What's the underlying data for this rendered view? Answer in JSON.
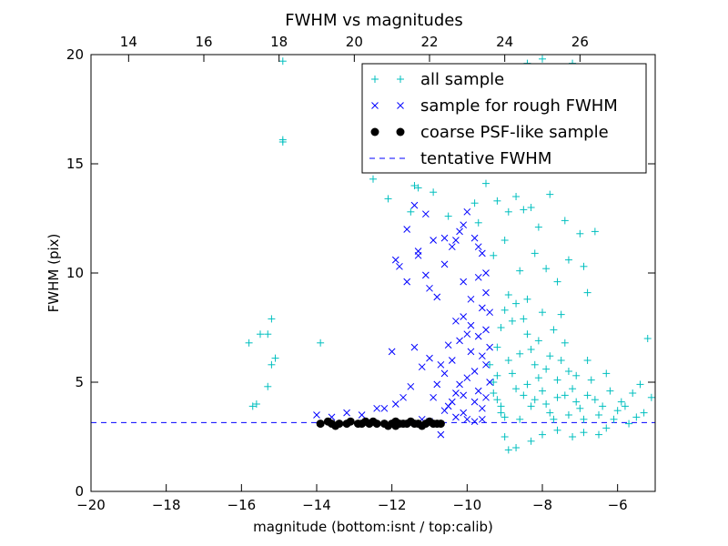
{
  "chart_data": {
    "type": "scatter",
    "title": "FWHM vs magnitudes",
    "xlabel": "magnitude (bottom:isnt / top:calib)",
    "ylabel": "FWHM (pix)",
    "xlim": [
      -20,
      -5
    ],
    "ylim": [
      0,
      20
    ],
    "x_ticks": [
      "−20",
      "−18",
      "−16",
      "−14",
      "−12",
      "−10",
      "−8",
      "−6"
    ],
    "x_tick_values": [
      -20,
      -18,
      -16,
      -14,
      -12,
      -10,
      -8,
      -6
    ],
    "y_ticks": [
      "0",
      "5",
      "10",
      "15",
      "20"
    ],
    "y_tick_values": [
      0,
      5,
      10,
      15,
      20
    ],
    "top_axis": {
      "label_note": "top:calib",
      "ticks": [
        "14",
        "16",
        "18",
        "20",
        "22",
        "24",
        "26"
      ],
      "tick_values": [
        14,
        16,
        18,
        20,
        22,
        24,
        26
      ],
      "xlim": [
        13.0,
        28.0
      ]
    },
    "grid": false,
    "legend_position": "top-right",
    "series": [
      {
        "name": "all sample",
        "marker": "+",
        "color": "#00bfbf",
        "points": [
          [
            -14.9,
            19.7
          ],
          [
            -14.9,
            16.1
          ],
          [
            -14.9,
            16.0
          ],
          [
            -15.2,
            7.9
          ],
          [
            -15.3,
            7.2
          ],
          [
            -15.8,
            6.8
          ],
          [
            -15.5,
            7.2
          ],
          [
            -15.1,
            6.1
          ],
          [
            -15.2,
            5.8
          ],
          [
            -15.3,
            4.8
          ],
          [
            -15.6,
            4.0
          ],
          [
            -15.7,
            3.9
          ],
          [
            -13.9,
            6.8
          ],
          [
            -12.5,
            14.3
          ],
          [
            -12.1,
            13.4
          ],
          [
            -11.5,
            12.8
          ],
          [
            -11.4,
            14.0
          ],
          [
            -11.3,
            13.9
          ],
          [
            -10.9,
            13.7
          ],
          [
            -10.5,
            12.6
          ],
          [
            -9.8,
            13.2
          ],
          [
            -9.7,
            12.3
          ],
          [
            -9.5,
            14.1
          ],
          [
            -9.2,
            13.3
          ],
          [
            -8.9,
            12.8
          ],
          [
            -8.7,
            13.5
          ],
          [
            -8.5,
            12.9
          ],
          [
            -8.3,
            13.0
          ],
          [
            -8.1,
            12.1
          ],
          [
            -7.8,
            13.6
          ],
          [
            -7.4,
            12.4
          ],
          [
            -7.0,
            11.8
          ],
          [
            -6.6,
            11.9
          ],
          [
            -6.9,
            10.3
          ],
          [
            -7.3,
            10.6
          ],
          [
            -8.0,
            19.8
          ],
          [
            -8.4,
            19.6
          ],
          [
            -7.2,
            19.6
          ],
          [
            -8.6,
            10.1
          ],
          [
            -9.0,
            11.5
          ],
          [
            -9.3,
            10.8
          ],
          [
            -8.2,
            10.9
          ],
          [
            -7.9,
            10.2
          ],
          [
            -7.6,
            9.6
          ],
          [
            -6.8,
            9.1
          ],
          [
            -5.2,
            7.0
          ],
          [
            -5.1,
            4.3
          ],
          [
            -5.4,
            4.9
          ],
          [
            -5.6,
            4.5
          ],
          [
            -5.8,
            3.9
          ],
          [
            -5.9,
            4.1
          ],
          [
            -5.3,
            3.6
          ],
          [
            -5.5,
            3.4
          ],
          [
            -5.7,
            3.1
          ],
          [
            -6.1,
            3.3
          ],
          [
            -6.3,
            2.9
          ],
          [
            -6.5,
            2.6
          ],
          [
            -6.9,
            2.7
          ],
          [
            -7.2,
            2.5
          ],
          [
            -7.6,
            2.8
          ],
          [
            -8.0,
            2.6
          ],
          [
            -8.3,
            2.3
          ],
          [
            -8.7,
            2.0
          ],
          [
            -9.0,
            2.5
          ],
          [
            -8.9,
            1.9
          ],
          [
            -9.1,
            3.6
          ],
          [
            -9.2,
            4.2
          ],
          [
            -9.3,
            5.0
          ],
          [
            -9.4,
            5.8
          ],
          [
            -9.2,
            6.6
          ],
          [
            -9.1,
            7.5
          ],
          [
            -9.0,
            8.3
          ],
          [
            -8.9,
            9.0
          ],
          [
            -8.7,
            8.6
          ],
          [
            -8.5,
            7.9
          ],
          [
            -8.4,
            7.2
          ],
          [
            -8.3,
            6.5
          ],
          [
            -8.2,
            5.8
          ],
          [
            -8.1,
            5.2
          ],
          [
            -8.0,
            4.6
          ],
          [
            -7.9,
            4.0
          ],
          [
            -7.8,
            3.6
          ],
          [
            -7.7,
            3.3
          ],
          [
            -7.6,
            5.1
          ],
          [
            -7.5,
            6.0
          ],
          [
            -7.4,
            6.8
          ],
          [
            -7.3,
            5.5
          ],
          [
            -7.2,
            4.7
          ],
          [
            -7.1,
            4.1
          ],
          [
            -7.0,
            3.8
          ],
          [
            -6.8,
            4.4
          ],
          [
            -6.7,
            5.1
          ],
          [
            -6.6,
            4.2
          ],
          [
            -6.4,
            3.9
          ],
          [
            -6.2,
            4.6
          ],
          [
            -6.0,
            3.7
          ],
          [
            -8.6,
            6.3
          ],
          [
            -8.8,
            5.4
          ],
          [
            -8.5,
            4.4
          ],
          [
            -8.3,
            3.9
          ],
          [
            -8.6,
            3.3
          ],
          [
            -9.0,
            3.4
          ],
          [
            -8.8,
            7.8
          ],
          [
            -8.4,
            8.8
          ],
          [
            -8.0,
            8.2
          ],
          [
            -7.7,
            7.4
          ],
          [
            -7.5,
            8.1
          ],
          [
            -7.8,
            6.2
          ],
          [
            -8.1,
            6.9
          ],
          [
            -8.9,
            6.0
          ],
          [
            -9.2,
            5.3
          ],
          [
            -9.3,
            4.5
          ],
          [
            -9.1,
            3.9
          ],
          [
            -7.9,
            5.6
          ],
          [
            -7.6,
            4.3
          ],
          [
            -7.3,
            3.5
          ],
          [
            -6.9,
            3.3
          ],
          [
            -6.5,
            3.5
          ],
          [
            -8.2,
            4.2
          ],
          [
            -8.4,
            4.9
          ],
          [
            -8.7,
            4.7
          ],
          [
            -7.4,
            4.4
          ],
          [
            -7.1,
            5.3
          ],
          [
            -6.8,
            6.0
          ],
          [
            -6.3,
            5.4
          ]
        ]
      },
      {
        "name": "sample for rough FWHM",
        "marker": "x",
        "color": "#0000ff",
        "points": [
          [
            -14.0,
            3.5
          ],
          [
            -13.6,
            3.4
          ],
          [
            -13.2,
            3.6
          ],
          [
            -12.8,
            3.5
          ],
          [
            -12.4,
            3.8
          ],
          [
            -12.2,
            3.8
          ],
          [
            -11.9,
            4.0
          ],
          [
            -11.7,
            4.3
          ],
          [
            -11.5,
            4.8
          ],
          [
            -11.2,
            3.3
          ],
          [
            -11.0,
            3.2
          ],
          [
            -10.7,
            2.6
          ],
          [
            -10.5,
            3.9
          ],
          [
            -10.3,
            4.5
          ],
          [
            -10.1,
            3.6
          ],
          [
            -10.0,
            3.3
          ],
          [
            -9.8,
            3.2
          ],
          [
            -9.6,
            3.3
          ],
          [
            -12.0,
            6.4
          ],
          [
            -11.4,
            6.6
          ],
          [
            -11.9,
            10.6
          ],
          [
            -11.8,
            10.3
          ],
          [
            -11.6,
            9.6
          ],
          [
            -11.3,
            11.0
          ],
          [
            -11.3,
            10.8
          ],
          [
            -11.1,
            9.9
          ],
          [
            -11.0,
            9.3
          ],
          [
            -10.8,
            8.9
          ],
          [
            -10.6,
            10.4
          ],
          [
            -10.4,
            11.2
          ],
          [
            -10.3,
            11.5
          ],
          [
            -10.2,
            11.9
          ],
          [
            -10.1,
            12.2
          ],
          [
            -10.6,
            11.6
          ],
          [
            -10.9,
            11.5
          ],
          [
            -11.1,
            12.7
          ],
          [
            -11.4,
            13.1
          ],
          [
            -11.6,
            12.0
          ],
          [
            -10.0,
            12.8
          ],
          [
            -9.8,
            11.6
          ],
          [
            -9.7,
            11.2
          ],
          [
            -9.6,
            10.9
          ],
          [
            -9.5,
            10.0
          ],
          [
            -9.5,
            9.1
          ],
          [
            -9.4,
            8.2
          ],
          [
            -9.5,
            7.4
          ],
          [
            -9.4,
            6.6
          ],
          [
            -9.5,
            5.8
          ],
          [
            -9.4,
            5.0
          ],
          [
            -9.5,
            4.3
          ],
          [
            -9.6,
            3.8
          ],
          [
            -9.7,
            4.6
          ],
          [
            -9.8,
            5.5
          ],
          [
            -9.9,
            6.4
          ],
          [
            -10.0,
            7.2
          ],
          [
            -10.1,
            8.0
          ],
          [
            -10.2,
            6.9
          ],
          [
            -10.3,
            7.8
          ],
          [
            -10.4,
            6.0
          ],
          [
            -10.5,
            6.7
          ],
          [
            -10.6,
            5.4
          ],
          [
            -10.7,
            5.8
          ],
          [
            -10.8,
            4.9
          ],
          [
            -10.9,
            4.3
          ],
          [
            -11.0,
            6.1
          ],
          [
            -11.2,
            5.7
          ],
          [
            -9.9,
            8.8
          ],
          [
            -10.1,
            9.6
          ],
          [
            -9.7,
            9.8
          ],
          [
            -9.6,
            8.4
          ],
          [
            -9.9,
            7.6
          ],
          [
            -10.2,
            4.9
          ],
          [
            -10.4,
            4.1
          ],
          [
            -10.6,
            3.7
          ],
          [
            -9.8,
            4.1
          ],
          [
            -9.6,
            6.2
          ],
          [
            -9.7,
            7.1
          ],
          [
            -10.0,
            5.2
          ],
          [
            -10.1,
            4.4
          ],
          [
            -10.3,
            3.4
          ]
        ]
      },
      {
        "name": "coarse PSF-like sample",
        "marker": "o",
        "color": "#000000",
        "points": [
          [
            -13.9,
            3.1
          ],
          [
            -13.7,
            3.2
          ],
          [
            -13.6,
            3.1
          ],
          [
            -13.4,
            3.1
          ],
          [
            -13.2,
            3.1
          ],
          [
            -13.1,
            3.2
          ],
          [
            -12.9,
            3.1
          ],
          [
            -12.8,
            3.1
          ],
          [
            -12.7,
            3.2
          ],
          [
            -12.6,
            3.1
          ],
          [
            -12.4,
            3.1
          ],
          [
            -12.2,
            3.1
          ],
          [
            -12.0,
            3.1
          ],
          [
            -11.9,
            3.2
          ],
          [
            -11.8,
            3.1
          ],
          [
            -11.7,
            3.1
          ],
          [
            -11.6,
            3.1
          ],
          [
            -11.5,
            3.2
          ],
          [
            -11.4,
            3.1
          ],
          [
            -11.3,
            3.1
          ],
          [
            -11.1,
            3.1
          ],
          [
            -11.0,
            3.2
          ],
          [
            -10.8,
            3.1
          ],
          [
            -10.7,
            3.1
          ],
          [
            -11.9,
            3.0
          ],
          [
            -12.1,
            3.0
          ],
          [
            -13.5,
            3.0
          ],
          [
            -12.5,
            3.2
          ],
          [
            -11.2,
            3.0
          ],
          [
            -10.9,
            3.1
          ]
        ]
      }
    ],
    "reference_line": {
      "name": "tentative FWHM",
      "style": "dashed",
      "color": "#0000ff",
      "y": 3.15
    }
  }
}
